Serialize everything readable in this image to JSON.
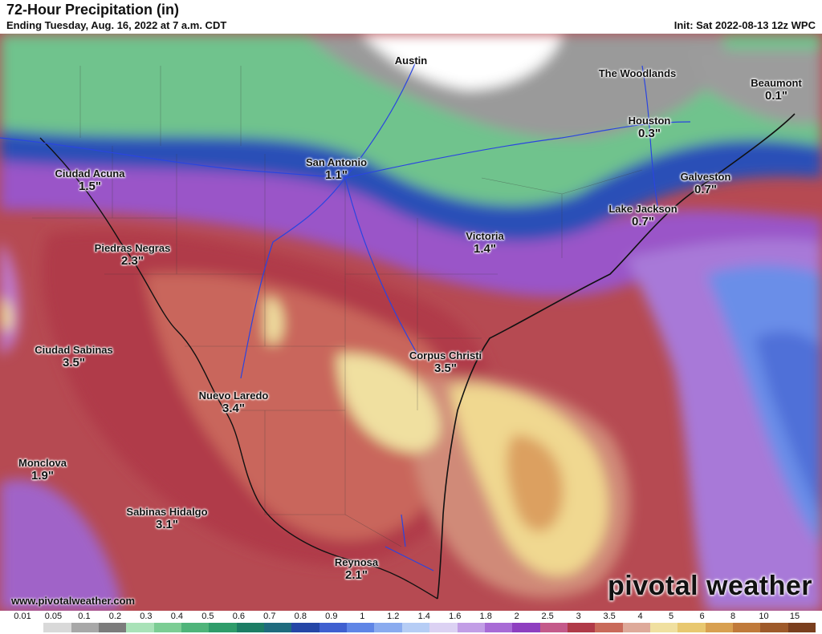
{
  "header": {
    "title": "72-Hour Precipitation (in)",
    "subtitle": "Ending Tuesday, Aug. 16, 2022 at 7 a.m. CDT",
    "init": "Init: Sat 2022-08-13 12z WPC"
  },
  "cities": [
    {
      "name": "Austin",
      "value": ""
    },
    {
      "name": "The Woodlands",
      "value": ""
    },
    {
      "name": "Beaumont",
      "value": "0.1\""
    },
    {
      "name": "Houston",
      "value": "0.3\""
    },
    {
      "name": "San Antonio",
      "value": "1.1\""
    },
    {
      "name": "Ciudad Acuna",
      "value": "1.5\""
    },
    {
      "name": "Galveston",
      "value": "0.7\""
    },
    {
      "name": "Lake Jackson",
      "value": "0.7\""
    },
    {
      "name": "Victoria",
      "value": "1.4\""
    },
    {
      "name": "Piedras Negras",
      "value": "2.3\""
    },
    {
      "name": "Ciudad Sabinas",
      "value": "3.5\""
    },
    {
      "name": "Corpus Christi",
      "value": "3.5\""
    },
    {
      "name": "Nuevo Laredo",
      "value": "3.4\""
    },
    {
      "name": "Monclova",
      "value": "1.9\""
    },
    {
      "name": "Sabinas Hidalgo",
      "value": "3.1\""
    },
    {
      "name": "Reynosa",
      "value": "2.1\""
    }
  ],
  "footer": {
    "website": "www.pivotalweather.com",
    "brand": "pivotal weather"
  },
  "legend": {
    "ticks": [
      "0.01",
      "0.05",
      "0.1",
      "0.2",
      "0.3",
      "0.4",
      "0.5",
      "0.6",
      "0.7",
      "0.8",
      "0.9",
      "1",
      "1.2",
      "1.4",
      "1.6",
      "1.8",
      "2",
      "2.5",
      "3",
      "3.5",
      "4",
      "5",
      "6",
      "8",
      "10",
      "15"
    ],
    "colors": [
      "#ffffff",
      "#d9d9d9",
      "#a8a8a8",
      "#7c7c7c",
      "#a9e2b8",
      "#7ccd94",
      "#4fb47a",
      "#2f9c6a",
      "#1c7d64",
      "#1f6b7e",
      "#2546a6",
      "#3f5fd0",
      "#5f85e6",
      "#8aabef",
      "#b6cdf5",
      "#dcd2f3",
      "#c29ee6",
      "#a86bd6",
      "#8e3fc0",
      "#c45a8a",
      "#b03a48",
      "#c96a5a",
      "#deaa9a",
      "#f0e0a0",
      "#e8c870",
      "#d8a050",
      "#c07a3a",
      "#9e5a2a",
      "#7a3f1e"
    ]
  }
}
